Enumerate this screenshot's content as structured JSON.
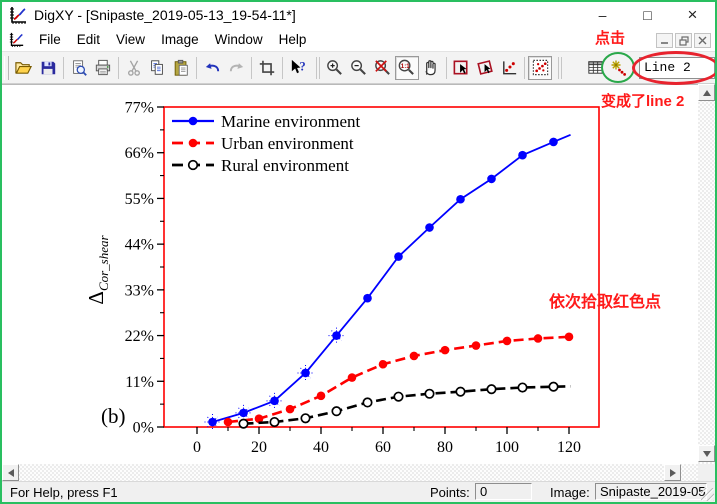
{
  "window": {
    "title": "DigXY - [Snipaste_2019-05-13_19-54-11*]",
    "controls": {
      "minimize": "–",
      "maximize": "□",
      "close": "×"
    }
  },
  "menu": {
    "items": [
      "File",
      "Edit",
      "View",
      "Image",
      "Window",
      "Help"
    ]
  },
  "mdi_child_controls": {
    "minimize": "minimize",
    "restore": "restore",
    "close": "close"
  },
  "toolbar": {
    "line_selector_value": "Line 2",
    "icons": [
      "open",
      "save",
      "print-preview",
      "print",
      "cut",
      "copy",
      "paste",
      "undo",
      "redo",
      "crop",
      "context-help",
      "zoom-in",
      "zoom-out",
      "zoom-off",
      "zoom-1to1",
      "pan",
      "select-region",
      "rotate-region",
      "pick-points",
      "auto-points",
      "grid",
      "new-curve"
    ],
    "disabled_icons": [
      "cut",
      "redo"
    ],
    "pressed_icons": [
      "zoom-1to1",
      "auto-points"
    ]
  },
  "annotations": {
    "click": "点击",
    "became_line2": "变成了line 2",
    "pick_red_points": "依次拾取红色点"
  },
  "statusbar": {
    "help_text": "For Help, press F1",
    "points_label": "Points:",
    "points_value": "0",
    "image_label": "Image:",
    "image_value": "Snipaste_2019-05"
  },
  "chart_data": {
    "type": "line",
    "title": "",
    "xlabel": "",
    "ylabel": "Δ_Cor_shear",
    "panel_label": "(b)",
    "frame_color": "#ff0000",
    "xlim": [
      -10.5,
      129.5
    ],
    "ylim": [
      0,
      77
    ],
    "x_ticks": [
      0,
      20,
      40,
      60,
      80,
      100,
      120
    ],
    "x_minor_step": 10,
    "y_tick_values": [
      0,
      11,
      22,
      33,
      44,
      55,
      66,
      77
    ],
    "y_tick_labels": [
      "0%",
      "11%",
      "22%",
      "33%",
      "44%",
      "55%",
      "66%",
      "77%"
    ],
    "y_minor_step": 5.5,
    "grid": false,
    "legend_position": "top-left",
    "series": [
      {
        "name": "Marine environment",
        "color": "#0000ff",
        "line": "solid",
        "marker": "filled-circle",
        "picked_point_count": 5,
        "x": [
          5,
          15,
          25,
          35,
          45,
          55,
          65,
          75,
          85,
          95,
          105,
          115
        ],
        "y": [
          1.2,
          3.4,
          6.3,
          13,
          22,
          31,
          41,
          48,
          54.8,
          59.7,
          65.4,
          68.6
        ],
        "line_extend": {
          "x": 120.5,
          "y": 70.3
        }
      },
      {
        "name": "Urban environment",
        "color": "#ff0000",
        "line": "dashed",
        "marker": "filled-circle",
        "picked_point_count": 0,
        "x": [
          10,
          20,
          30,
          40,
          50,
          60,
          70,
          80,
          90,
          100,
          110,
          120
        ],
        "y": [
          1.2,
          2.0,
          4.3,
          7.5,
          11.9,
          15.1,
          17.1,
          18.5,
          19.6,
          20.7,
          21.3,
          21.7
        ],
        "line_extend": null
      },
      {
        "name": "Rural environment",
        "color": "#000000",
        "line": "dashed",
        "marker": "open-circle",
        "picked_point_count": 0,
        "x": [
          15,
          25,
          35,
          45,
          55,
          65,
          75,
          85,
          95,
          105,
          115
        ],
        "y": [
          0.8,
          1.2,
          2.1,
          3.8,
          5.9,
          7.3,
          8.0,
          8.5,
          9.1,
          9.5,
          9.7
        ],
        "line_extend": {
          "x": 120.5,
          "y": 9.8
        }
      }
    ]
  }
}
